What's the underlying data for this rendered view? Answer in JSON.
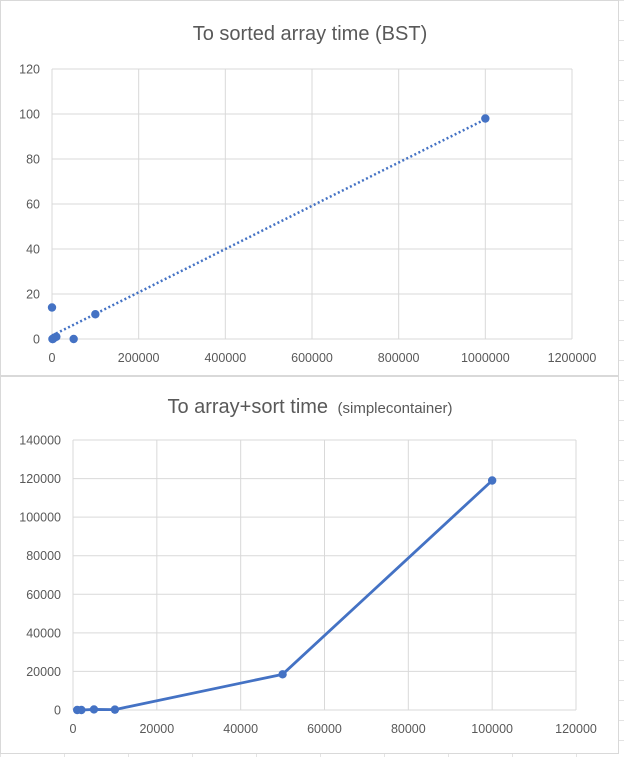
{
  "chart_data": [
    {
      "type": "scatter",
      "title": "To sorted array time (BST)",
      "xlabel": "",
      "ylabel": "",
      "xlim": [
        0,
        1200000
      ],
      "ylim": [
        0,
        120
      ],
      "xticks": [
        "0",
        "200000",
        "400000",
        "600000",
        "800000",
        "1000000",
        "1200000"
      ],
      "yticks": [
        "0",
        "20",
        "40",
        "60",
        "80",
        "100",
        "120"
      ],
      "grid": true,
      "legend": "none",
      "trendline": "linear",
      "color": "#4472c4",
      "points": [
        {
          "x": 0,
          "y": 14
        },
        {
          "x": 1000,
          "y": 0
        },
        {
          "x": 2000,
          "y": 0
        },
        {
          "x": 5000,
          "y": 0.5
        },
        {
          "x": 10000,
          "y": 1
        },
        {
          "x": 50000,
          "y": 0
        },
        {
          "x": 100000,
          "y": 11
        },
        {
          "x": 1000000,
          "y": 98
        }
      ]
    },
    {
      "type": "line",
      "title_main": "To array+sort time",
      "title_sub": "(simplecontainer)",
      "xlabel": "",
      "ylabel": "",
      "xlim": [
        0,
        120000
      ],
      "ylim": [
        0,
        140000
      ],
      "xticks": [
        "0",
        "20000",
        "40000",
        "60000",
        "80000",
        "100000",
        "120000"
      ],
      "yticks": [
        "0",
        "20000",
        "40000",
        "60000",
        "80000",
        "100000",
        "120000",
        "140000"
      ],
      "grid": true,
      "legend": "none",
      "color": "#4472c4",
      "points": [
        {
          "x": 1000,
          "y": 0
        },
        {
          "x": 2000,
          "y": 0
        },
        {
          "x": 5000,
          "y": 300
        },
        {
          "x": 10000,
          "y": 200
        },
        {
          "x": 50000,
          "y": 18500
        },
        {
          "x": 100000,
          "y": 119000
        }
      ]
    }
  ]
}
